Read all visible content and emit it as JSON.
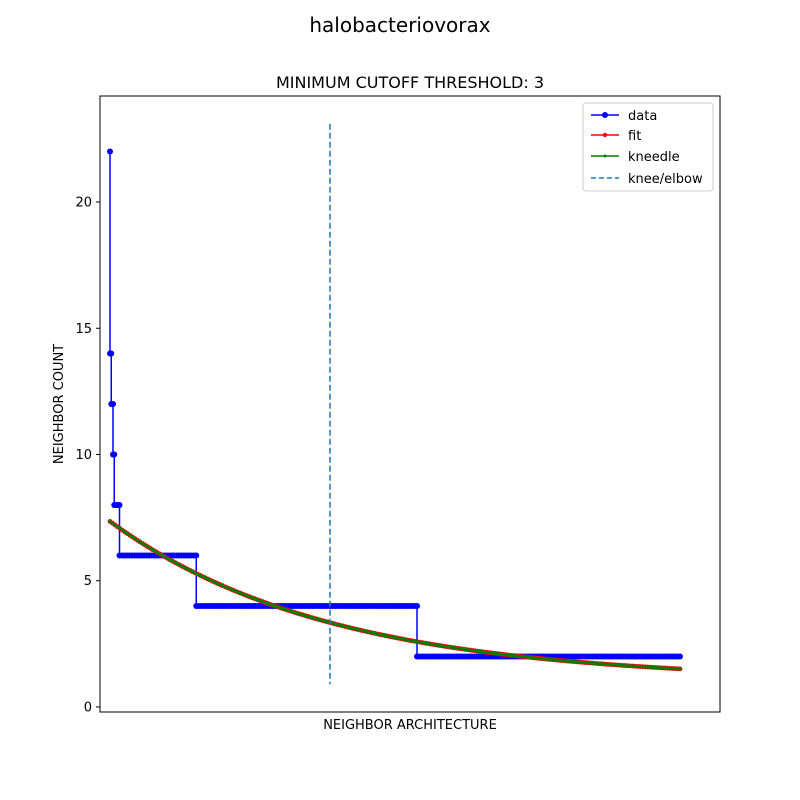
{
  "chart_data": {
    "type": "line",
    "suptitle": "halobacteriovorax",
    "title": "MINIMUM CUTOFF THRESHOLD: 3",
    "xlabel": "NEIGHBOR ARCHITECTURE",
    "ylabel": "NEIGHBOR COUNT",
    "xlim": [
      -4,
      244
    ],
    "ylim": [
      -0.2,
      24.2
    ],
    "yticks": [
      0,
      5,
      10,
      15,
      20
    ],
    "xticks_visible": false,
    "grid": false,
    "legend_position": "top-right",
    "series": [
      {
        "name": "data",
        "color": "#0000ff",
        "marker": "circle",
        "step_levels": [
          {
            "value": 22,
            "x_start": 0,
            "x_end": 0
          },
          {
            "value": 14,
            "x_start": 0,
            "x_end": 0.5
          },
          {
            "value": 12,
            "x_start": 0.5,
            "x_end": 1.2
          },
          {
            "value": 10,
            "x_start": 1.2,
            "x_end": 1.7
          },
          {
            "value": 8,
            "x_start": 1.7,
            "x_end": 3.8
          },
          {
            "value": 6,
            "x_start": 3.8,
            "x_end": 34.5
          },
          {
            "value": 4,
            "x_start": 34.5,
            "x_end": 122.8
          },
          {
            "value": 2,
            "x_start": 122.8,
            "x_end": 228
          }
        ]
      },
      {
        "name": "fit",
        "color": "#ff0000",
        "marker": "circle",
        "model": {
          "form": "a*exp(-b*x)+c",
          "a": 6.3,
          "b": 0.0115,
          "c": 1.05
        },
        "x_range": [
          0,
          228
        ]
      },
      {
        "name": "kneedle",
        "color": "#008000",
        "marker": "point",
        "model": {
          "form": "a*exp(-b*x)+c",
          "a": 6.3,
          "b": 0.0115,
          "c": 1.05
        },
        "x_range": [
          0,
          228
        ]
      },
      {
        "name": "knee/elbow",
        "color": "#1f77b4",
        "style": "dashed",
        "x": 88,
        "y_range": [
          0.9,
          23.1
        ]
      }
    ]
  }
}
